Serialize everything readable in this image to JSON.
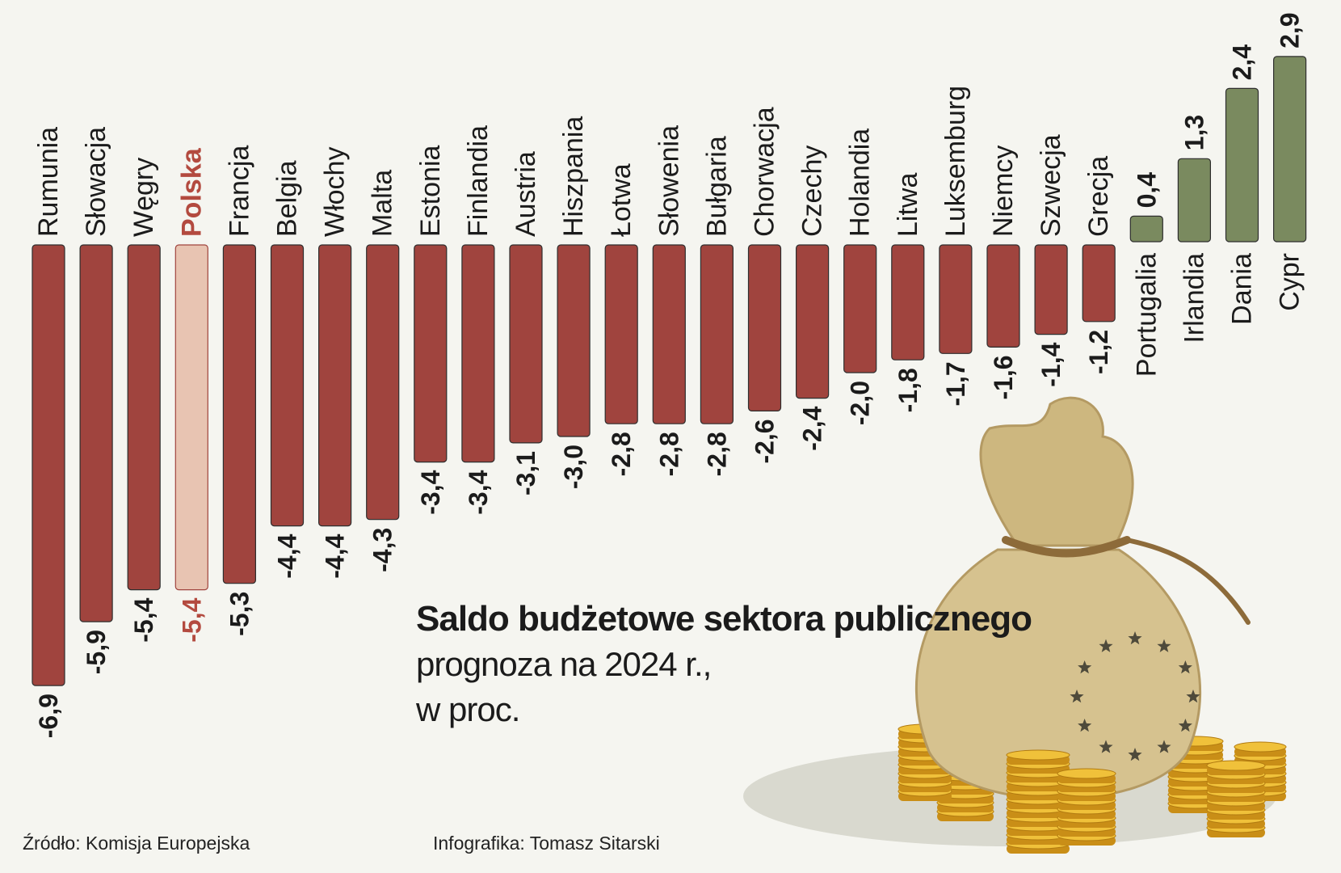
{
  "chart_data": {
    "type": "bar",
    "title": "Saldo budżetowe sektora publicznego",
    "subtitle_lines": [
      "prognoza na 2024 r.,",
      "w proc."
    ],
    "categories": [
      "Rumunia",
      "Słowacja",
      "Węgry",
      "Polska",
      "Francja",
      "Belgia",
      "Włochy",
      "Malta",
      "Estonia",
      "Finlandia",
      "Austria",
      "Hiszpania",
      "Łotwa",
      "Słowenia",
      "Bułgaria",
      "Chorwacja",
      "Czechy",
      "Holandia",
      "Litwa",
      "Luksemburg",
      "Niemcy",
      "Szwecja",
      "Grecja",
      "Portugalia",
      "Irlandia",
      "Dania",
      "Cypr"
    ],
    "values": [
      -6.9,
      -5.9,
      -5.4,
      -5.4,
      -5.3,
      -4.4,
      -4.4,
      -4.3,
      -3.4,
      -3.4,
      -3.1,
      -3.0,
      -2.8,
      -2.8,
      -2.8,
      -2.6,
      -2.4,
      -2.0,
      -1.8,
      -1.7,
      -1.6,
      -1.4,
      -1.2,
      0.4,
      1.3,
      2.4,
      2.9
    ],
    "value_labels": [
      "-6,9",
      "-5,9",
      "-5,4",
      "-5,4",
      "-5,3",
      "-4,4",
      "-4,4",
      "-4,3",
      "-3,4",
      "-3,4",
      "-3,1",
      "-3,0",
      "-2,8",
      "-2,8",
      "-2,8",
      "-2,6",
      "-2,4",
      "-2,0",
      "-1,8",
      "-1,7",
      "-1,6",
      "-1,4",
      "-1,2",
      "0,4",
      "1,3",
      "2,4",
      "2,9"
    ],
    "highlight": "Polska",
    "unit": "proc.",
    "colors": {
      "negative": "#a0443e",
      "positive": "#7a8a5f",
      "highlight_fill": "#e8c4b2",
      "highlight_text": "#b34a3f",
      "text": "#1b1b1b"
    }
  },
  "footer": {
    "source": "Źródło: Komisja Europejska",
    "credit": "Infografika: Tomasz Sitarski"
  },
  "illustration": {
    "icon": "money-bag-with-coins-icon",
    "stars": 12
  }
}
